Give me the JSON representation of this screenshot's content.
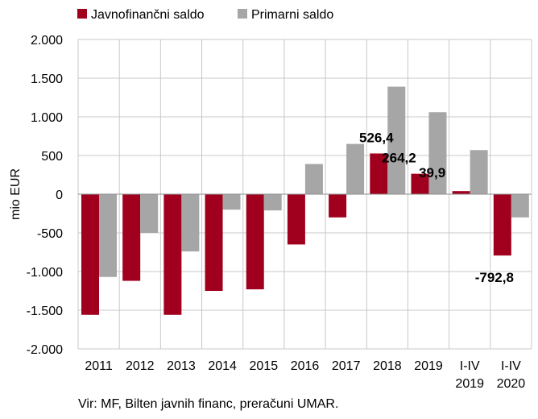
{
  "chart_data": {
    "type": "bar",
    "categories": [
      [
        "2011"
      ],
      [
        "2012"
      ],
      [
        "2013"
      ],
      [
        "2014"
      ],
      [
        "2015"
      ],
      [
        "2016"
      ],
      [
        "2017"
      ],
      [
        "2018"
      ],
      [
        "2019"
      ],
      [
        "I-IV",
        "2019"
      ],
      [
        "I-IV",
        "2020"
      ]
    ],
    "series": [
      {
        "name": "Javnofinančni saldo",
        "color": "#a0001e",
        "values": [
          -1560,
          -1120,
          -1560,
          -1250,
          -1230,
          -650,
          -300,
          526.4,
          264.2,
          39.9,
          -792.8
        ]
      },
      {
        "name": "Primarni saldo",
        "color": "#a6a6a6",
        "values": [
          -1070,
          -500,
          -740,
          -200,
          -210,
          390,
          650,
          1390,
          1060,
          570,
          -300
        ]
      }
    ],
    "data_labels": [
      {
        "series": 0,
        "index": 7,
        "text": "526,4"
      },
      {
        "series": 0,
        "index": 8,
        "text": "264,2"
      },
      {
        "series": 0,
        "index": 9,
        "text": "39,9"
      },
      {
        "series": 0,
        "index": 10,
        "text": "-792,8"
      }
    ],
    "yticks": [
      {
        "value": 2000,
        "label": "2.000"
      },
      {
        "value": 1500,
        "label": "1.500"
      },
      {
        "value": 1000,
        "label": "1.000"
      },
      {
        "value": 500,
        "label": "500"
      },
      {
        "value": 0,
        "label": "0"
      },
      {
        "value": -500,
        "label": "-500"
      },
      {
        "value": -1000,
        "label": "-1.000"
      },
      {
        "value": -1500,
        "label": "-1.500"
      },
      {
        "value": -2000,
        "label": "-2.000"
      }
    ],
    "ylim": [
      -2000,
      2000
    ],
    "ylabel": "mio EUR",
    "xlabel": "",
    "title": "",
    "grid": true,
    "legend_position": "top-left"
  },
  "source_note": "Vir: MF, Bilten javnih financ, preračuni UMAR."
}
